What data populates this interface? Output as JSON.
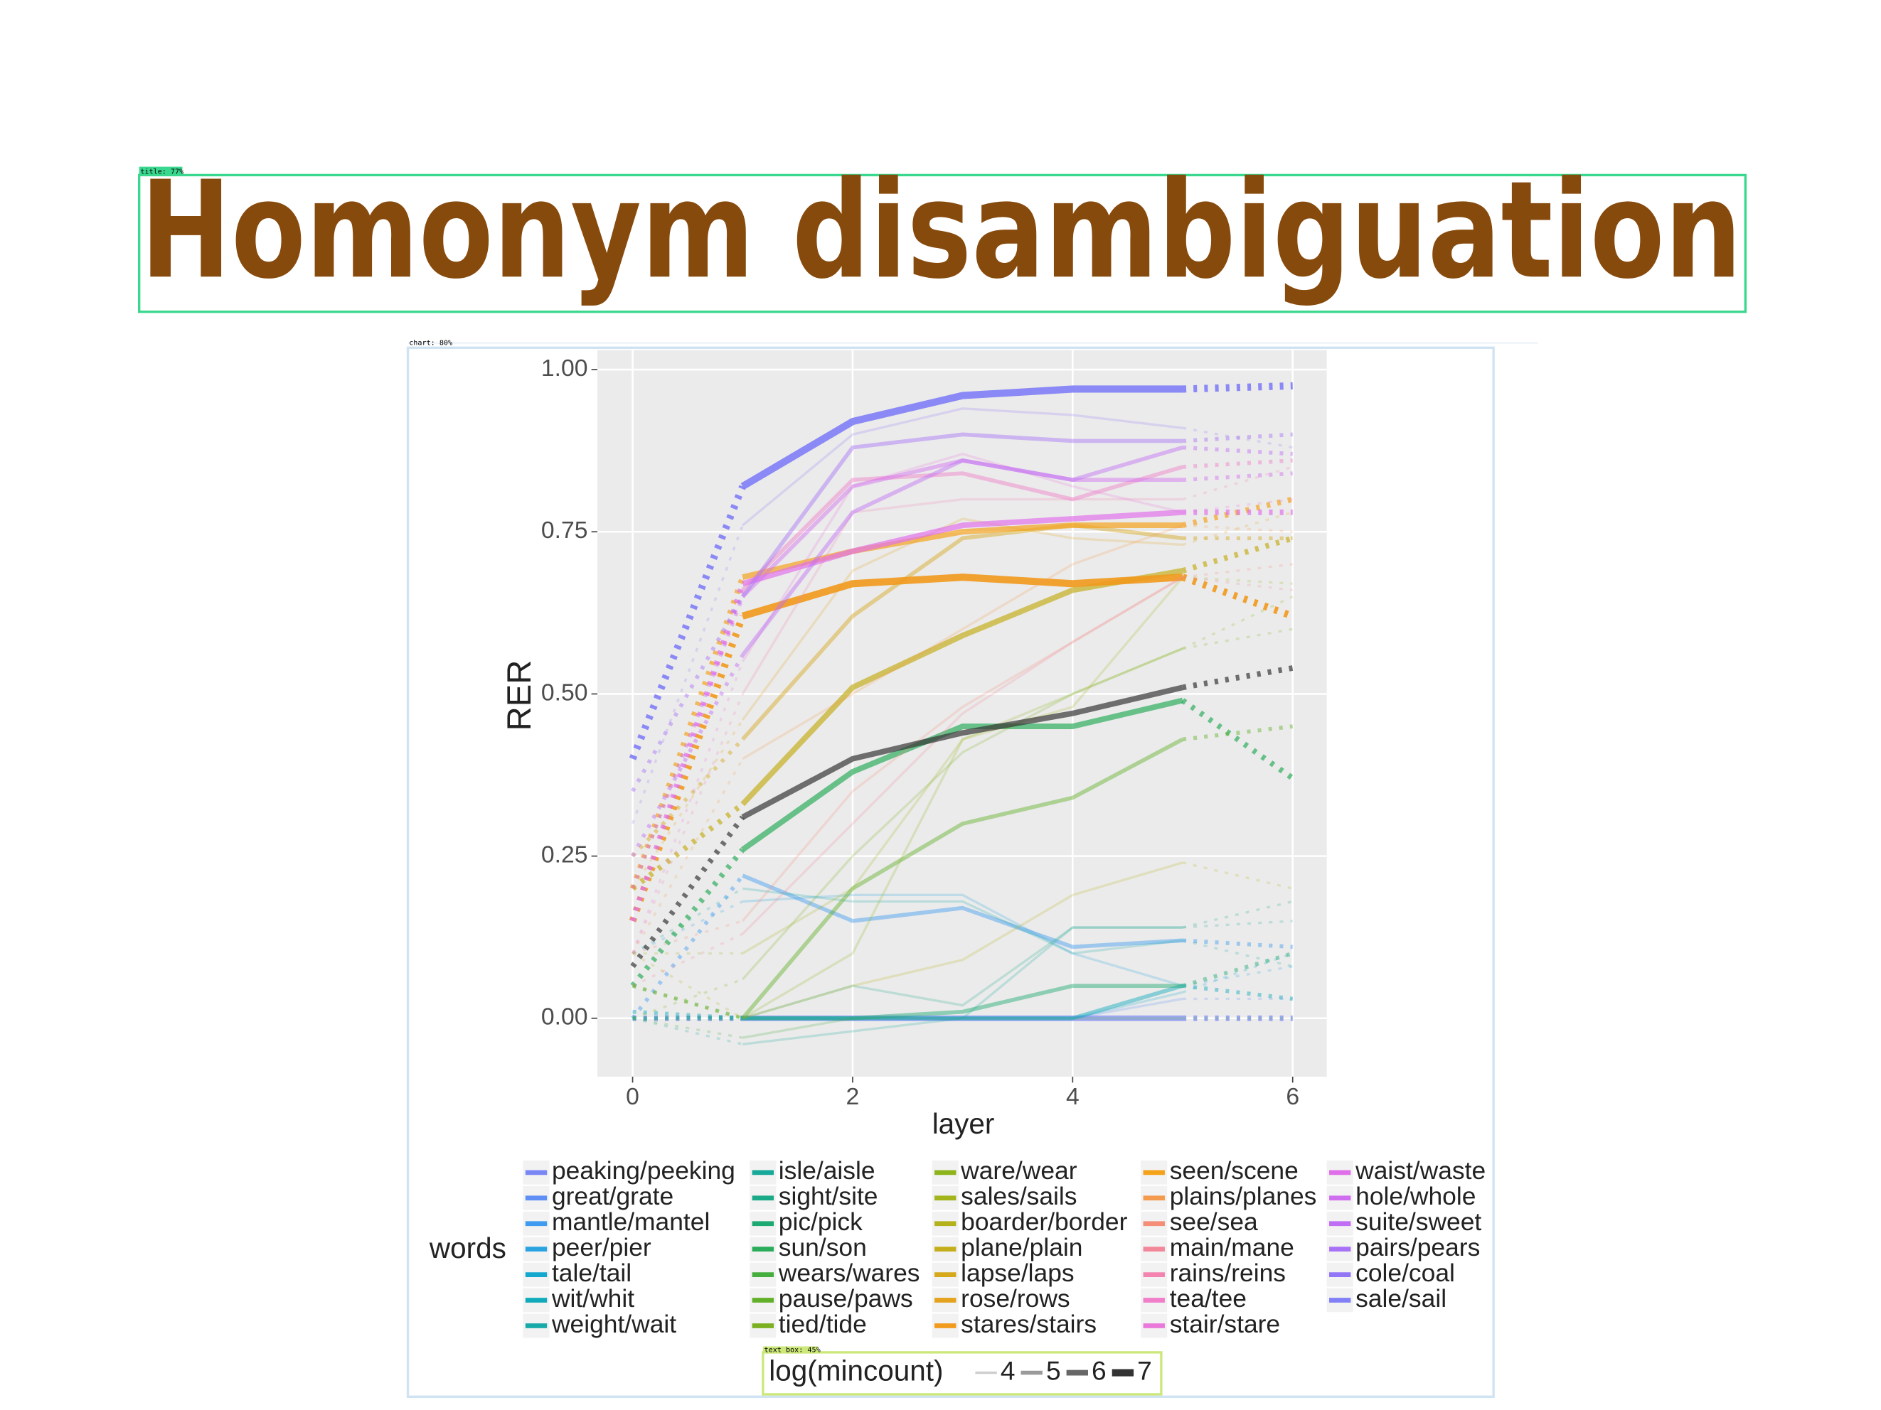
{
  "slide": {
    "title": "Homonym disambiguation"
  },
  "overlays": [
    "title: 77%",
    "chart: 80%",
    "text box: 45%"
  ],
  "chart_data": {
    "type": "line",
    "x_label": "layer",
    "y_label": "RER",
    "legend_title": "words",
    "x": [
      0,
      1,
      2,
      3,
      4,
      5,
      6
    ],
    "xlim": [
      -0.32,
      6.31
    ],
    "ylim": [
      -0.09,
      1.03
    ],
    "xticks": [
      0,
      2,
      4,
      6
    ],
    "yticks": [
      {
        "value": 0,
        "label": "0.00"
      },
      {
        "value": 0.25,
        "label": "0.25"
      },
      {
        "value": 0.5,
        "label": "0.50"
      },
      {
        "value": 0.75,
        "label": "0.75"
      },
      {
        "value": 1,
        "label": "1.00"
      }
    ],
    "grid": true,
    "size_legend": {
      "title": "log(mincount)",
      "values": [
        4,
        5,
        6,
        7
      ]
    },
    "overall": {
      "color": "#333333",
      "mincount": 6,
      "values": [
        0.08,
        0.31,
        0.4,
        0.44,
        0.47,
        0.51,
        0.54
      ]
    },
    "series": [
      {
        "name": "peaking/peeking",
        "color": "#7b86f5",
        "mincount": 6,
        "values": [
          0,
          0,
          0,
          0,
          0,
          0,
          0
        ]
      },
      {
        "name": "great/grate",
        "color": "#5f8ff5",
        "mincount": 4,
        "values": [
          0,
          0,
          0,
          0,
          0,
          0.03,
          0.03
        ]
      },
      {
        "name": "mantle/mantel",
        "color": "#3f9bf0",
        "mincount": 5,
        "values": [
          0,
          0.22,
          0.15,
          0.17,
          0.11,
          0.12,
          0.11
        ]
      },
      {
        "name": "peer/pier",
        "color": "#2aa3e0",
        "mincount": 4,
        "values": [
          0.1,
          0.18,
          0.19,
          0.19,
          0.1,
          0.05,
          0.08
        ]
      },
      {
        "name": "tale/tail",
        "color": "#14a8cf",
        "mincount": 4,
        "values": [
          0,
          0,
          0,
          0,
          0,
          0.04,
          0.1
        ]
      },
      {
        "name": "wit/whit",
        "color": "#10aabb",
        "mincount": 5,
        "values": [
          0.01,
          0,
          0,
          0,
          0,
          0.05,
          0.03
        ]
      },
      {
        "name": "weight/wait",
        "color": "#18aaa8",
        "mincount": 4,
        "values": [
          0.1,
          0.2,
          0.18,
          0.18,
          0.1,
          0.12,
          0.08
        ]
      },
      {
        "name": "isle/aisle",
        "color": "#17a99a",
        "mincount": 4,
        "values": [
          0,
          -0.04,
          -0.02,
          0,
          0.14,
          0.14,
          0.15
        ]
      },
      {
        "name": "sight/site",
        "color": "#1aaa88",
        "mincount": 4,
        "values": [
          0.05,
          0,
          0.05,
          0.02,
          0.14,
          0.14,
          0.18
        ]
      },
      {
        "name": "pic/pick",
        "color": "#1daa72",
        "mincount": 5,
        "values": [
          0,
          0,
          0,
          0.01,
          0.05,
          0.05,
          0.1
        ]
      },
      {
        "name": "sun/son",
        "color": "#2aac5a",
        "mincount": 6,
        "values": [
          0.05,
          0.26,
          0.38,
          0.45,
          0.45,
          0.49,
          0.37
        ]
      },
      {
        "name": "wears/wares",
        "color": "#45ae3f",
        "mincount": 4,
        "values": [
          0,
          -0.03,
          0,
          0,
          0,
          0,
          0
        ]
      },
      {
        "name": "pause/paws",
        "color": "#62b02a",
        "mincount": 5,
        "values": [
          0.05,
          0,
          0.2,
          0.3,
          0.34,
          0.43,
          0.45
        ]
      },
      {
        "name": "tied/tide",
        "color": "#7bb020",
        "mincount": 4,
        "values": [
          0,
          0.06,
          0.25,
          0.41,
          0.5,
          0.57,
          0.6
        ]
      },
      {
        "name": "ware/wear",
        "color": "#8eb41c",
        "mincount": 4,
        "values": [
          0.05,
          0,
          0.1,
          0.43,
          0.5,
          0.57,
          0.65
        ]
      },
      {
        "name": "sales/sails",
        "color": "#a3b41c",
        "mincount": 4,
        "values": [
          0.1,
          0.1,
          0.2,
          0.43,
          0.48,
          0.68,
          0.67
        ]
      },
      {
        "name": "boarder/border",
        "color": "#b4b21c",
        "mincount": 4,
        "values": [
          0.1,
          0,
          0.05,
          0.09,
          0.19,
          0.24,
          0.2
        ]
      },
      {
        "name": "plane/plain",
        "color": "#c4ae1c",
        "mincount": 6,
        "values": [
          0.2,
          0.33,
          0.51,
          0.59,
          0.66,
          0.69,
          0.74
        ]
      },
      {
        "name": "lapse/laps",
        "color": "#d6a81c",
        "mincount": 5,
        "values": [
          0.25,
          0.43,
          0.62,
          0.74,
          0.76,
          0.74,
          0.74
        ]
      },
      {
        "name": "rose/rows",
        "color": "#e4a21e",
        "mincount": 4,
        "values": [
          0.2,
          0.46,
          0.69,
          0.77,
          0.74,
          0.73,
          0.78
        ]
      },
      {
        "name": "stares/stairs",
        "color": "#f09a1e",
        "mincount": 7,
        "values": [
          0.15,
          0.62,
          0.67,
          0.68,
          0.67,
          0.68,
          0.62
        ]
      },
      {
        "name": "seen/scene",
        "color": "#f4a21a",
        "mincount": 6,
        "values": [
          0.2,
          0.68,
          0.72,
          0.75,
          0.76,
          0.76,
          0.8
        ]
      },
      {
        "name": "plains/planes",
        "color": "#f49a4c",
        "mincount": 4,
        "values": [
          0.1,
          0.4,
          0.5,
          0.6,
          0.7,
          0.76,
          0.75
        ]
      },
      {
        "name": "see/sea",
        "color": "#f48e78",
        "mincount": 4,
        "values": [
          0.1,
          0.15,
          0.35,
          0.48,
          0.58,
          0.68,
          0.7
        ]
      },
      {
        "name": "main/mane",
        "color": "#f3879a",
        "mincount": 4,
        "values": [
          0.05,
          0.13,
          0.3,
          0.47,
          0.58,
          0.68,
          0.66
        ]
      },
      {
        "name": "rains/reins",
        "color": "#f384b0",
        "mincount": 4,
        "values": [
          0.1,
          0.5,
          0.78,
          0.8,
          0.8,
          0.8,
          0.85
        ]
      },
      {
        "name": "tea/tee",
        "color": "#f07ec8",
        "mincount": 5,
        "values": [
          0.15,
          0.66,
          0.83,
          0.84,
          0.8,
          0.85,
          0.86
        ]
      },
      {
        "name": "stair/stare",
        "color": "#ea78db",
        "mincount": 4,
        "values": [
          0.1,
          0.55,
          0.82,
          0.87,
          0.82,
          0.78,
          0.8
        ]
      },
      {
        "name": "waist/waste",
        "color": "#e070ea",
        "mincount": 6,
        "values": [
          0.15,
          0.67,
          0.72,
          0.76,
          0.77,
          0.78,
          0.78
        ]
      },
      {
        "name": "hole/whole",
        "color": "#d06ef0",
        "mincount": 5,
        "values": [
          0.2,
          0.65,
          0.82,
          0.86,
          0.83,
          0.83,
          0.84
        ]
      },
      {
        "name": "suite/sweet",
        "color": "#c06ef4",
        "mincount": 5,
        "values": [
          0.25,
          0.56,
          0.78,
          0.86,
          0.83,
          0.88,
          0.87
        ]
      },
      {
        "name": "pairs/pears",
        "color": "#a872f6",
        "mincount": 5,
        "values": [
          0.35,
          0.65,
          0.88,
          0.9,
          0.89,
          0.89,
          0.9
        ]
      },
      {
        "name": "cole/coal",
        "color": "#9276f6",
        "mincount": 4,
        "values": [
          0.3,
          0.76,
          0.9,
          0.94,
          0.93,
          0.91,
          0.88
        ]
      },
      {
        "name": "sale/sail",
        "color": "#8180f6",
        "mincount": 7,
        "values": [
          0.4,
          0.82,
          0.92,
          0.96,
          0.97,
          0.97,
          0.975
        ]
      }
    ]
  }
}
